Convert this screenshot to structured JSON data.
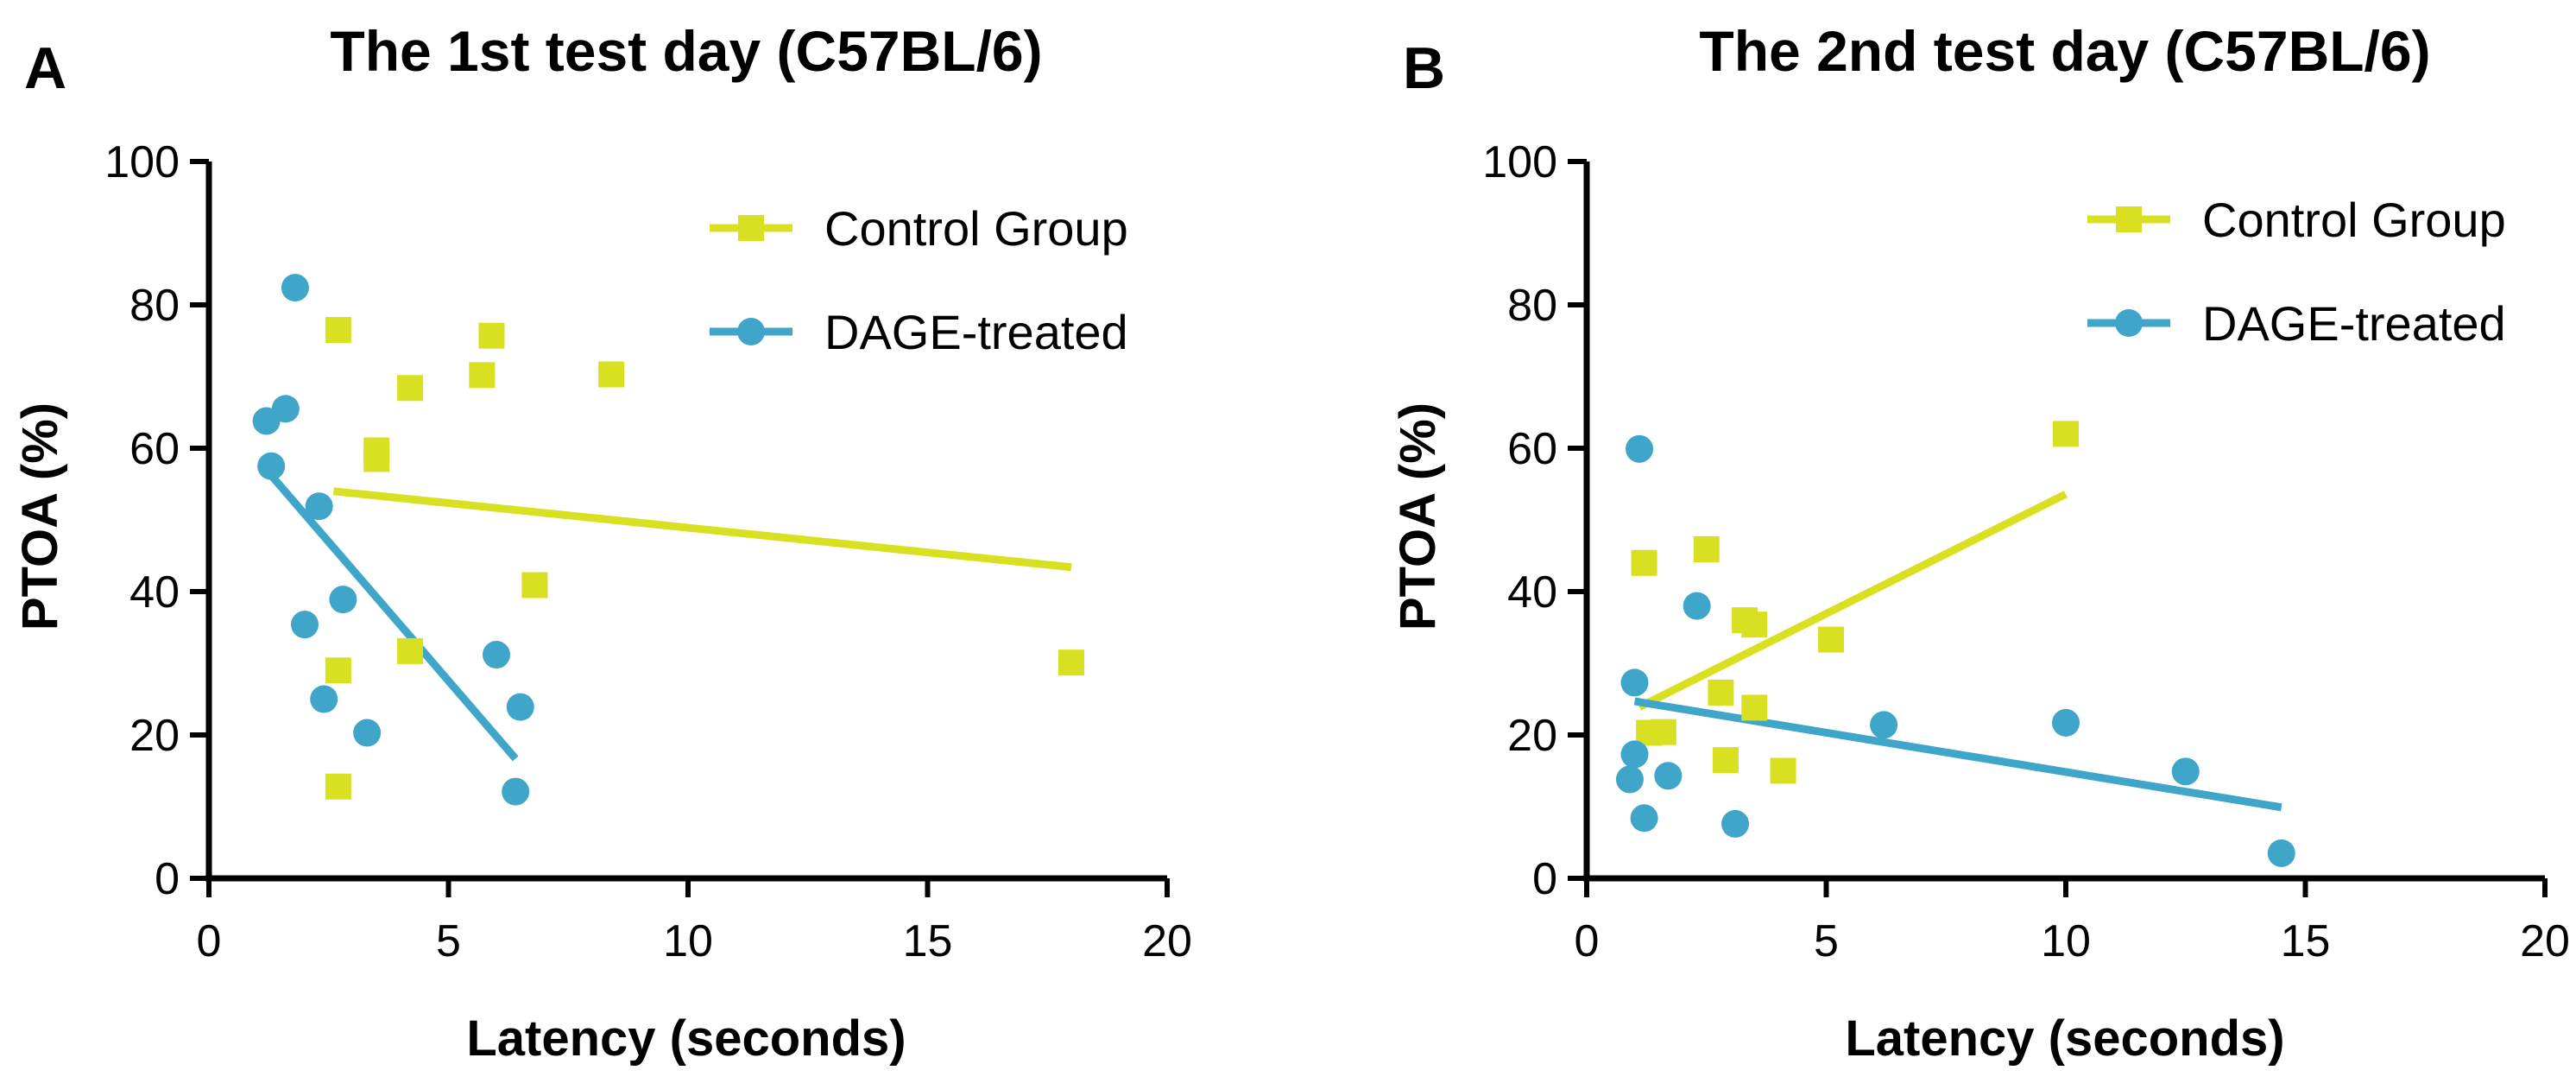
{
  "colors": {
    "control": "#d9e021",
    "dage": "#3fa5c9",
    "axis": "#000000"
  },
  "chart_data": [
    {
      "type": "scatter",
      "panel": "A",
      "title": "The 1st test day (C57BL/6)",
      "xlabel": "Latency (seconds)",
      "ylabel": "PTOA (%)",
      "xlim": [
        0,
        20
      ],
      "ylim": [
        0,
        100
      ],
      "xticks": [
        0,
        5,
        10,
        15,
        20
      ],
      "yticks": [
        0,
        20,
        40,
        60,
        80,
        100
      ],
      "legend_position": "top-right",
      "series": [
        {
          "name": "Control Group",
          "marker": "square",
          "color": "#d9e021",
          "points": [
            [
              2.7,
              76.5
            ],
            [
              5.9,
              75.7
            ],
            [
              4.2,
              68.4
            ],
            [
              5.7,
              70.2
            ],
            [
              8.4,
              70.3
            ],
            [
              3.5,
              59.7
            ],
            [
              3.5,
              58.5
            ],
            [
              6.8,
              40.9
            ],
            [
              4.2,
              31.7
            ],
            [
              2.7,
              29.0
            ],
            [
              2.7,
              12.8
            ],
            [
              18.0,
              30.1
            ]
          ],
          "fit": [
            [
              2.6,
              54.0
            ],
            [
              18.0,
              43.4
            ]
          ]
        },
        {
          "name": "DAGE-treated",
          "marker": "circle",
          "color": "#3fa5c9",
          "points": [
            [
              1.8,
              82.4
            ],
            [
              1.6,
              65.5
            ],
            [
              1.2,
              63.8
            ],
            [
              1.3,
              57.5
            ],
            [
              2.3,
              51.9
            ],
            [
              2.8,
              38.9
            ],
            [
              2.0,
              35.4
            ],
            [
              6.0,
              31.2
            ],
            [
              2.4,
              25.0
            ],
            [
              6.5,
              23.9
            ],
            [
              3.3,
              20.3
            ],
            [
              6.4,
              12.1
            ]
          ],
          "fit": [
            [
              1.2,
              57.0
            ],
            [
              6.4,
              16.7
            ]
          ]
        }
      ]
    },
    {
      "type": "scatter",
      "panel": "B",
      "title": "The 2nd test day (C57BL/6)",
      "xlabel": "Latency (seconds)",
      "ylabel": "PTOA (%)",
      "xlim": [
        0,
        20
      ],
      "ylim": [
        0,
        100
      ],
      "xticks": [
        0,
        5,
        10,
        15,
        20
      ],
      "yticks": [
        0,
        20,
        40,
        60,
        80,
        100
      ],
      "legend_position": "top-right",
      "series": [
        {
          "name": "Control Group",
          "marker": "square",
          "color": "#d9e021",
          "points": [
            [
              10.0,
              62.0
            ],
            [
              2.5,
              45.9
            ],
            [
              1.2,
              44.0
            ],
            [
              3.3,
              36.0
            ],
            [
              3.5,
              35.4
            ],
            [
              5.1,
              33.3
            ],
            [
              2.8,
              25.9
            ],
            [
              3.5,
              23.8
            ],
            [
              1.3,
              20.3
            ],
            [
              1.6,
              20.4
            ],
            [
              2.9,
              16.5
            ],
            [
              4.1,
              15.0
            ]
          ],
          "fit": [
            [
              1.1,
              23.9
            ],
            [
              10.0,
              53.6
            ]
          ]
        },
        {
          "name": "DAGE-treated",
          "marker": "circle",
          "color": "#3fa5c9",
          "points": [
            [
              1.1,
              59.9
            ],
            [
              2.3,
              38.0
            ],
            [
              1.0,
              27.3
            ],
            [
              6.2,
              21.4
            ],
            [
              10.0,
              21.7
            ],
            [
              1.0,
              17.3
            ],
            [
              1.7,
              14.3
            ],
            [
              0.9,
              13.8
            ],
            [
              12.5,
              14.9
            ],
            [
              1.2,
              8.4
            ],
            [
              3.1,
              7.6
            ],
            [
              14.5,
              3.5
            ]
          ],
          "fit": [
            [
              1.0,
              24.7
            ],
            [
              14.5,
              9.9
            ]
          ]
        }
      ]
    }
  ]
}
